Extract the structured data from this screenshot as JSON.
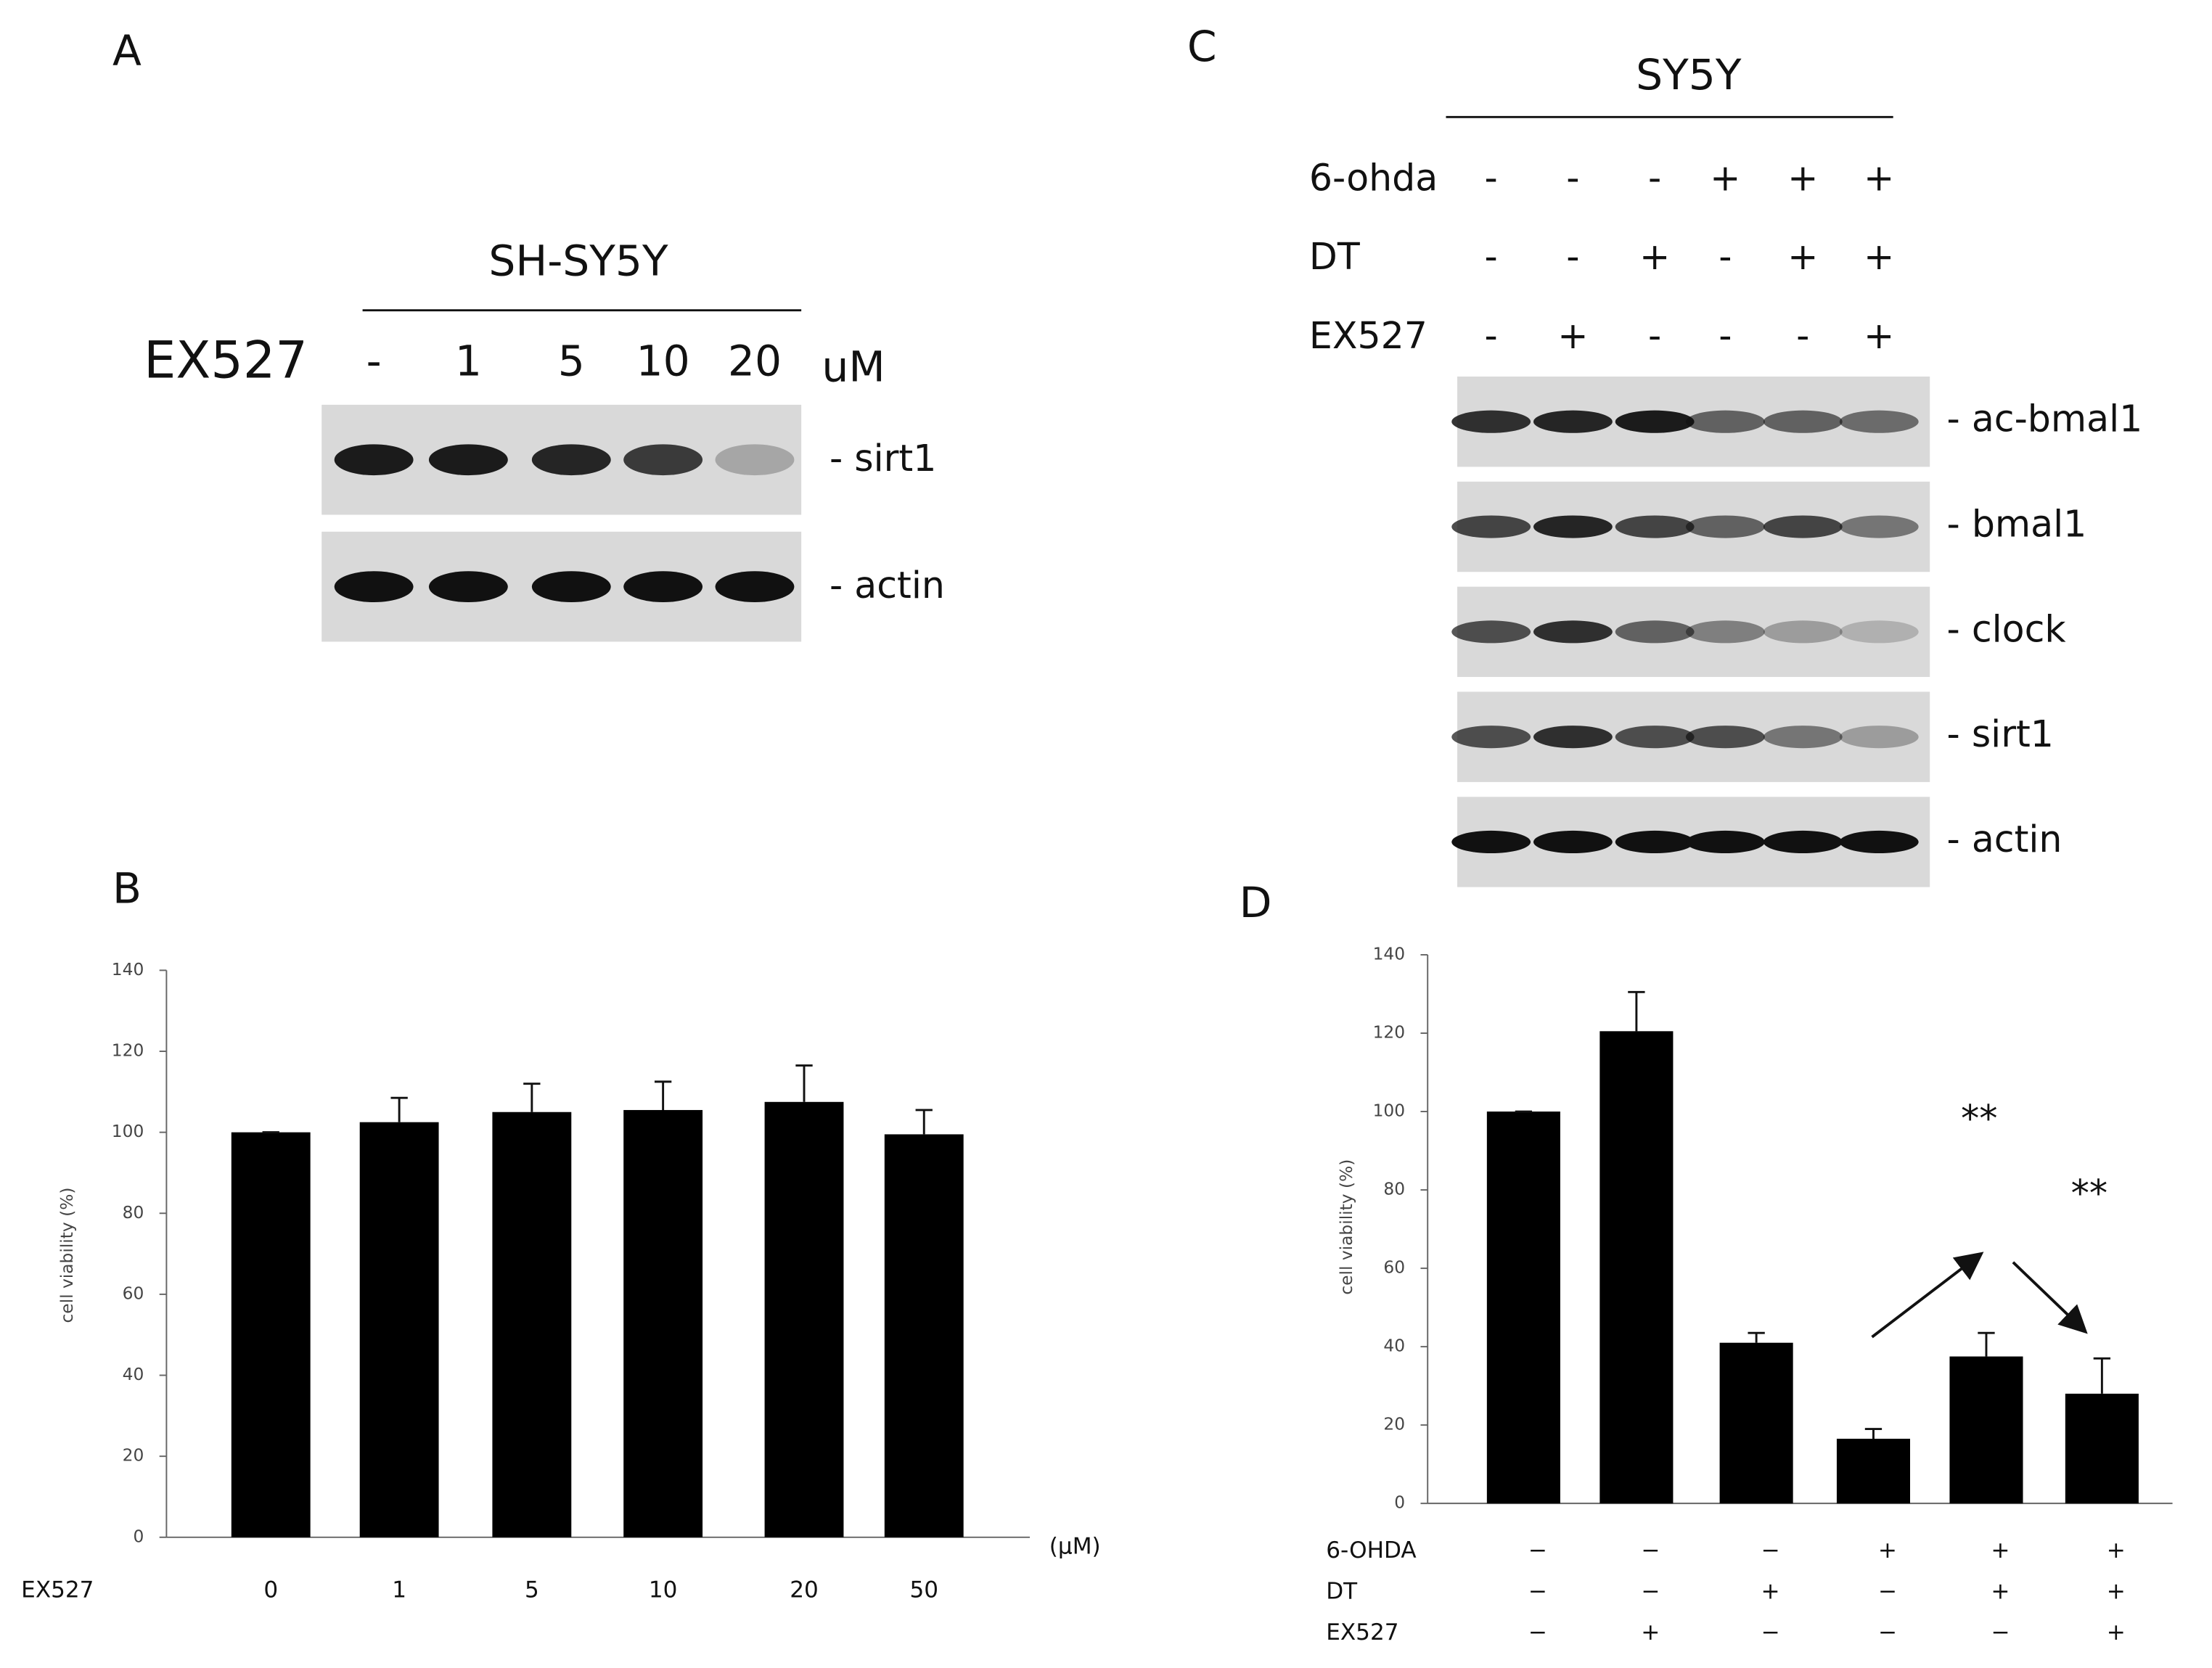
{
  "panels": {
    "A": {
      "label": "A",
      "cell_line": "SH-SY5Y",
      "row_label": "EX527",
      "lanes": [
        "-",
        "1",
        "5",
        "10",
        "20"
      ],
      "unit": "uM",
      "bands": [
        "- sirt1",
        "- actin"
      ]
    },
    "C": {
      "label": "C",
      "cell_line": "SY5Y",
      "rows": [
        {
          "name": "6-ohda",
          "signs": [
            "-",
            "-",
            "-",
            "+",
            "+",
            "+"
          ]
        },
        {
          "name": "DT",
          "signs": [
            "-",
            "-",
            "+",
            "-",
            "+",
            "+"
          ]
        },
        {
          "name": "EX527",
          "signs": [
            "-",
            "+",
            "-",
            "-",
            "-",
            "+"
          ]
        }
      ],
      "bands": [
        "- ac-bmal1",
        "- bmal1",
        "- clock",
        "- sirt1",
        "- actin"
      ]
    }
  },
  "chart_data": [
    {
      "type": "bar",
      "panel_label": "B",
      "y_label": "cell viability (%)",
      "x_row_label": "EX527",
      "x_unit": "(μM)",
      "categories": [
        "0",
        "1",
        "5",
        "10",
        "20",
        "50"
      ],
      "values": [
        100,
        102.5,
        105,
        105.5,
        107.5,
        99.5
      ],
      "errors": [
        0,
        6,
        7,
        7,
        9,
        6
      ],
      "color": "#000000",
      "ylim": [
        0,
        140
      ],
      "yticks": [
        0,
        20,
        40,
        60,
        80,
        100,
        120,
        140
      ]
    },
    {
      "type": "bar",
      "panel_label": "D",
      "y_label": "cell viability (%)",
      "categories": [
        null,
        null,
        null,
        null,
        null,
        null
      ],
      "values": [
        100,
        120.5,
        41,
        16.5,
        37.5,
        28
      ],
      "errors": [
        0,
        10,
        2.5,
        2.5,
        6,
        9
      ],
      "color": "#000000",
      "ylim": [
        0,
        140
      ],
      "yticks": [
        0,
        20,
        40,
        60,
        80,
        100,
        120,
        140
      ],
      "annotations": [
        "**",
        "**"
      ],
      "conditions": [
        {
          "name": "6-OHDA",
          "signs": [
            "−",
            "−",
            "−",
            "+",
            "+",
            "+"
          ]
        },
        {
          "name": "DT",
          "signs": [
            "−",
            "−",
            "+",
            "−",
            "+",
            "+"
          ]
        },
        {
          "name": "EX527",
          "signs": [
            "−",
            "+",
            "−",
            "−",
            "−",
            "+"
          ]
        }
      ]
    }
  ]
}
